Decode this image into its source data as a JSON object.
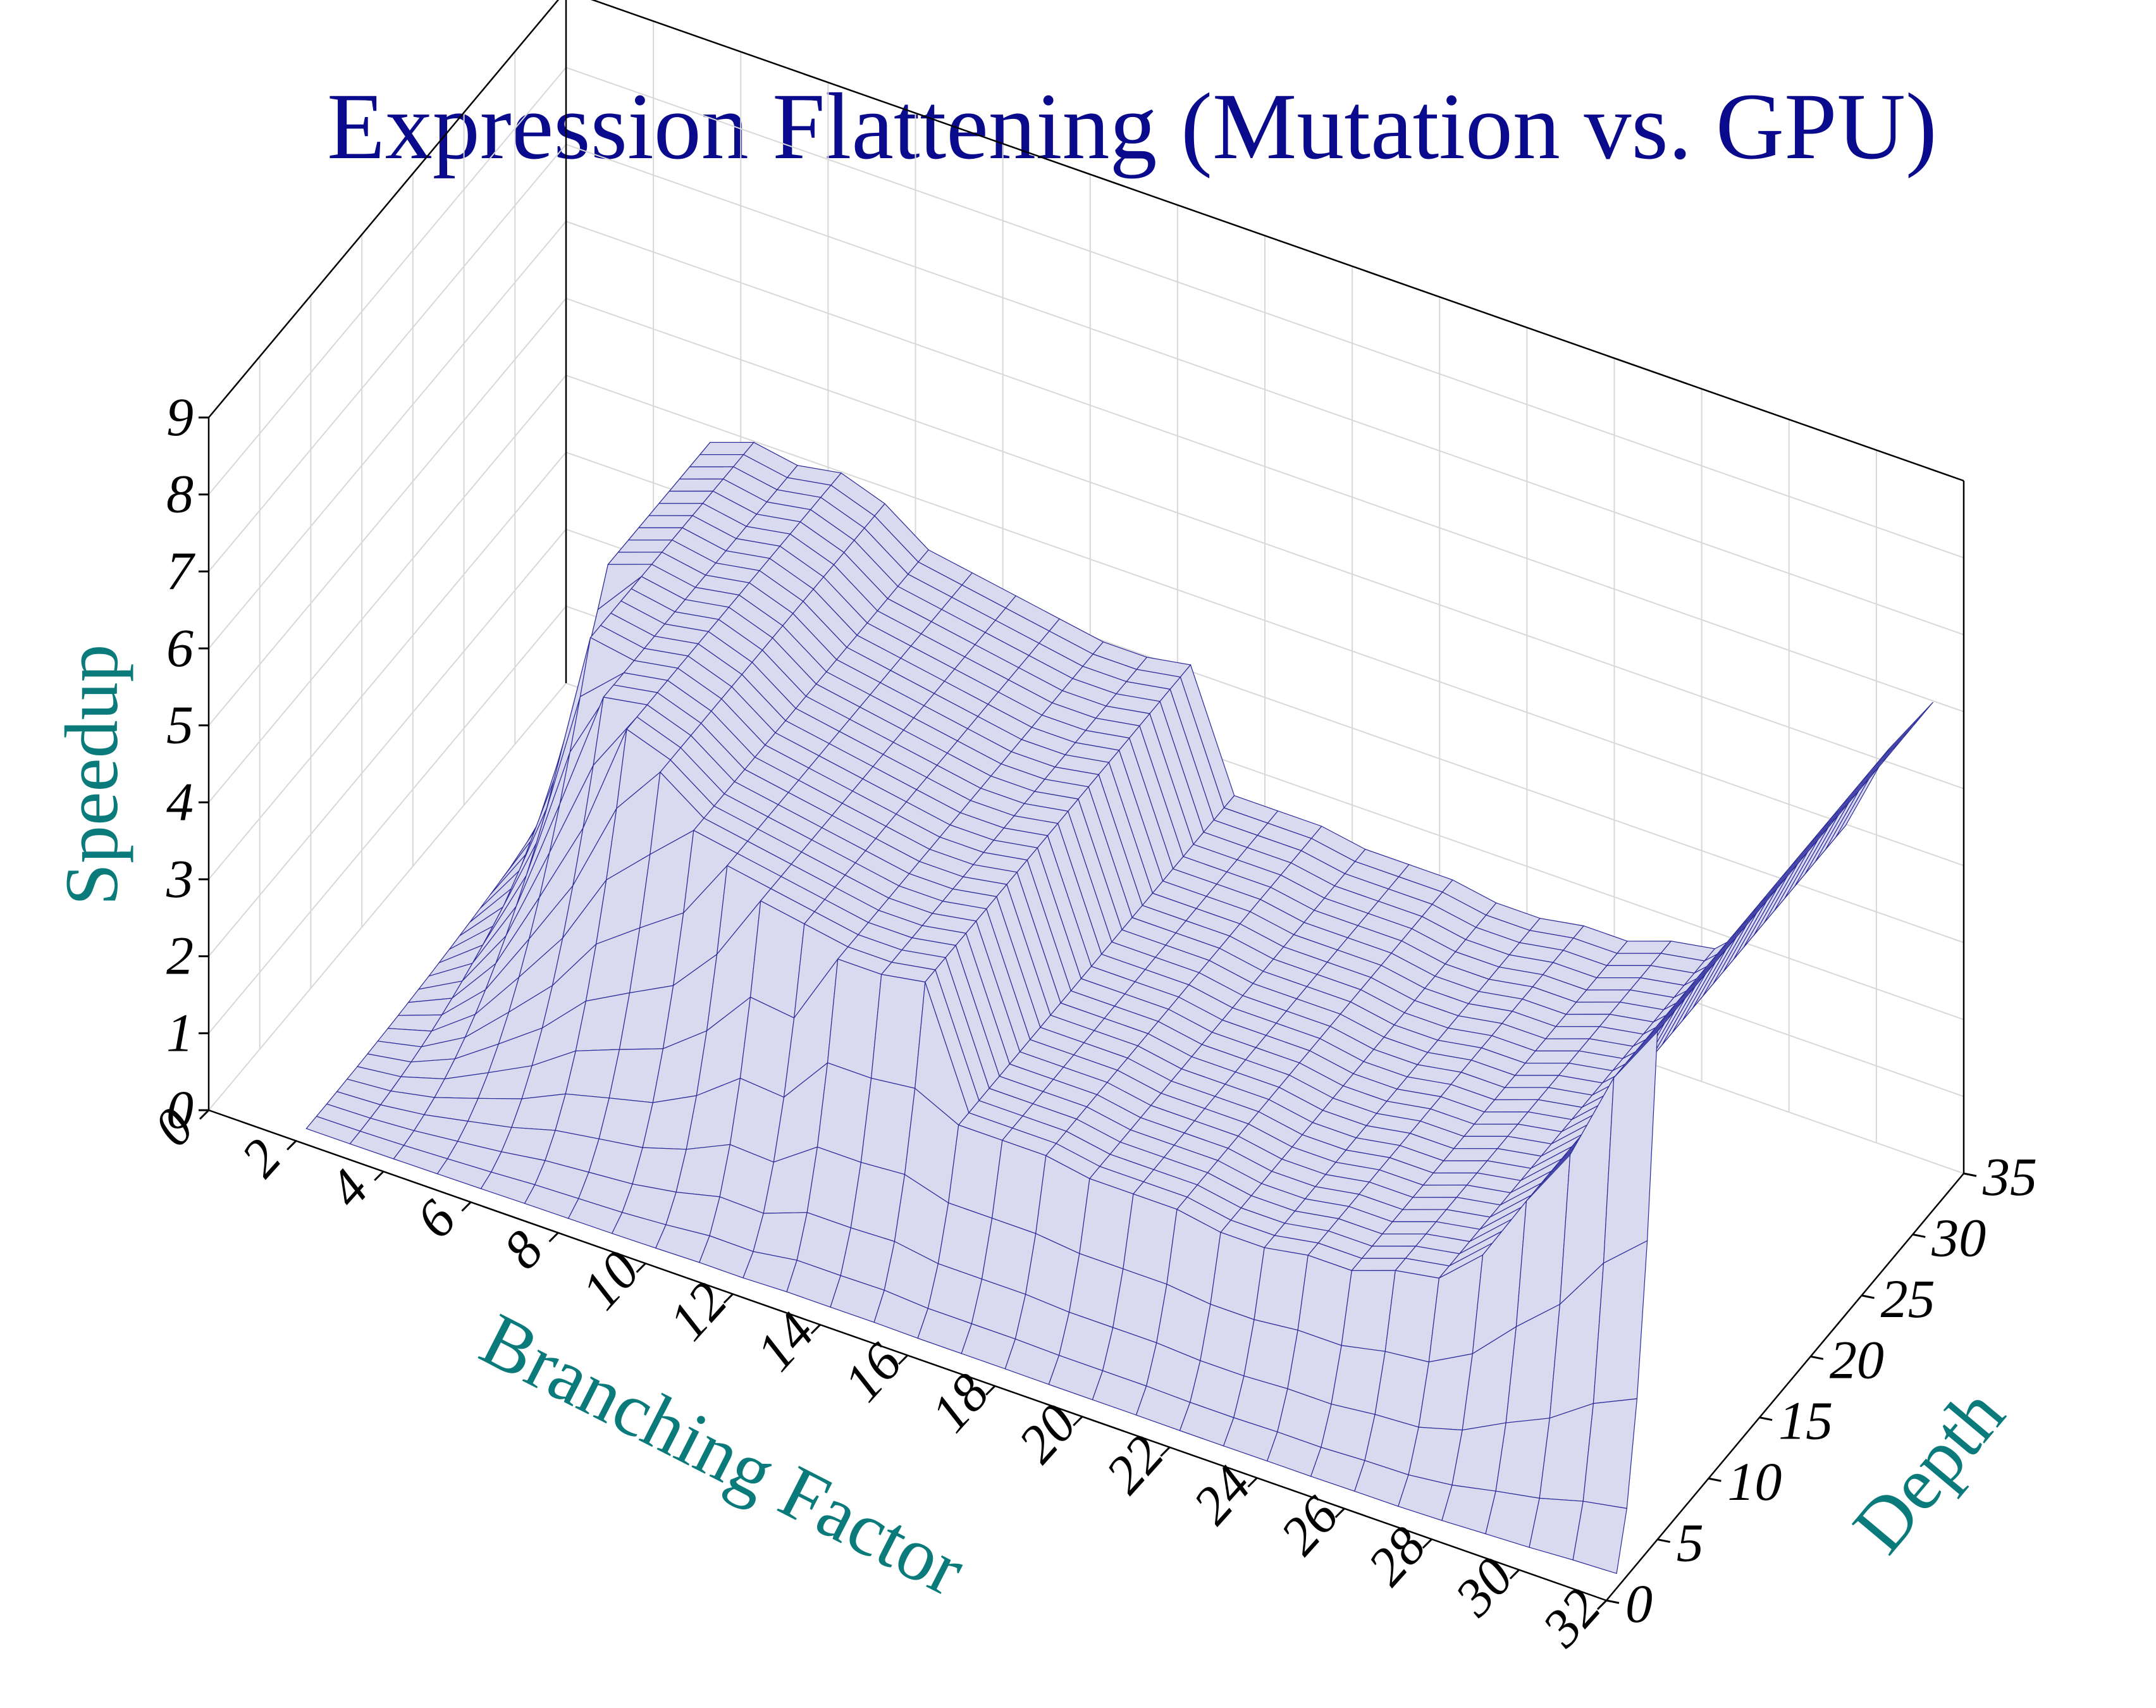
{
  "colors": {
    "title": "#0a0a8c",
    "axis_label": "#0a7a7a",
    "surface_fill": "#d9d9ef",
    "surface_edge": "#2a2a9a"
  },
  "chart_data": {
    "type": "surface3d",
    "title": "Expression Flattening (Mutation vs. GPU)",
    "xlabel": "Branching Factor",
    "ylabel": "Depth",
    "zlabel": "Speedup",
    "x_ticks": [
      "0",
      "2",
      "4",
      "6",
      "8",
      "10",
      "12",
      "14",
      "16",
      "18",
      "20",
      "22",
      "24",
      "26",
      "28",
      "30",
      "32"
    ],
    "y_ticks": [
      "0",
      "5",
      "10",
      "15",
      "20",
      "25",
      "30",
      "35"
    ],
    "z_ticks": [
      "0",
      "1",
      "2",
      "3",
      "4",
      "5",
      "6",
      "7",
      "8",
      "9"
    ],
    "xlim": [
      0,
      32
    ],
    "ylim": [
      0,
      35
    ],
    "zlim": [
      0,
      9
    ],
    "grid": true,
    "x": [
      2,
      3,
      4,
      5,
      6,
      7,
      8,
      9,
      10,
      11,
      12,
      13,
      14,
      15,
      16,
      17,
      18,
      19,
      20,
      21,
      22,
      23,
      24,
      25,
      26,
      27,
      28,
      29,
      30,
      31,
      32
    ],
    "depth": [
      1,
      2,
      3,
      4,
      5,
      6,
      7,
      8,
      9,
      10,
      11,
      12,
      13,
      14,
      15,
      16,
      17,
      18,
      19,
      20,
      21,
      22,
      23,
      24,
      25,
      26,
      27,
      28,
      29,
      30,
      31,
      32
    ],
    "speedup_max_by_branching": [
      0.5,
      2.8,
      4.4,
      4.6,
      4.5,
      4.6,
      4.4,
      4.0,
      3.9,
      3.8,
      3.7,
      3.6,
      3.6,
      3.7,
      2.2,
      2.2,
      2.2,
      2.1,
      2.1,
      2.1,
      2.0,
      2.0,
      2.1,
      2.1,
      2.3,
      2.4,
      2.9,
      3.8,
      4.6,
      5.8,
      6.6
    ],
    "peak_depth_by_branching": [
      30,
      30,
      22,
      16,
      13,
      11,
      10,
      9,
      8,
      7,
      7,
      6,
      6,
      6,
      5,
      5,
      5,
      5,
      5,
      5,
      5,
      5,
      5,
      5,
      5,
      5,
      5,
      5,
      5,
      5,
      5
    ]
  }
}
